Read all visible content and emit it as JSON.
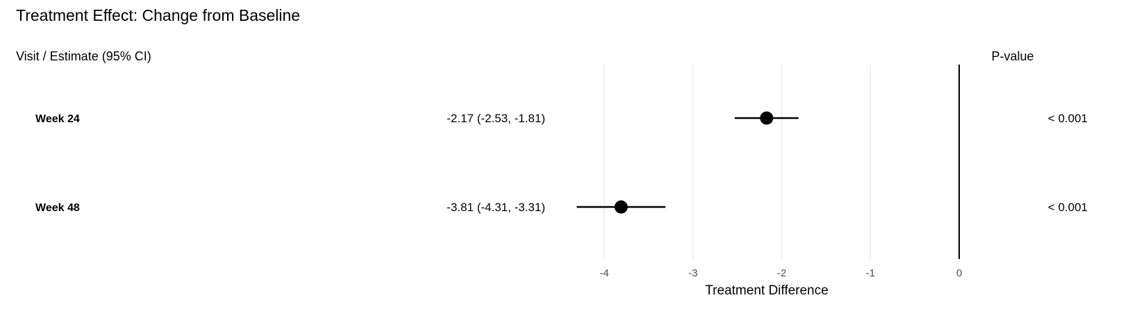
{
  "chart_data": {
    "type": "forest",
    "title": "Treatment Effect: Change from Baseline",
    "left_header": "Visit / Estimate (95% CI)",
    "right_header": "P-value",
    "xlabel": "Treatment Difference",
    "xlim": [
      -4.5,
      0
    ],
    "xticks": [
      -4,
      -3,
      -2,
      -1,
      0
    ],
    "xtick_labels": [
      "-4",
      "-3",
      "-2",
      "-1",
      "0"
    ],
    "reference_line": 0,
    "grid": true,
    "rows": [
      {
        "label": "Week 24",
        "estimate": -2.17,
        "lower": -2.53,
        "upper": -1.81,
        "ci_text": "-2.17 (-2.53, -1.81)",
        "p_value": "< 0.001"
      },
      {
        "label": "Week 48",
        "estimate": -3.81,
        "lower": -4.31,
        "upper": -3.31,
        "ci_text": "-3.81 (-4.31, -3.31)",
        "p_value": "< 0.001"
      }
    ],
    "colors": {
      "marker": "#000000",
      "grid": "#e5e5e5",
      "tick_text": "#4d4d4d"
    }
  }
}
